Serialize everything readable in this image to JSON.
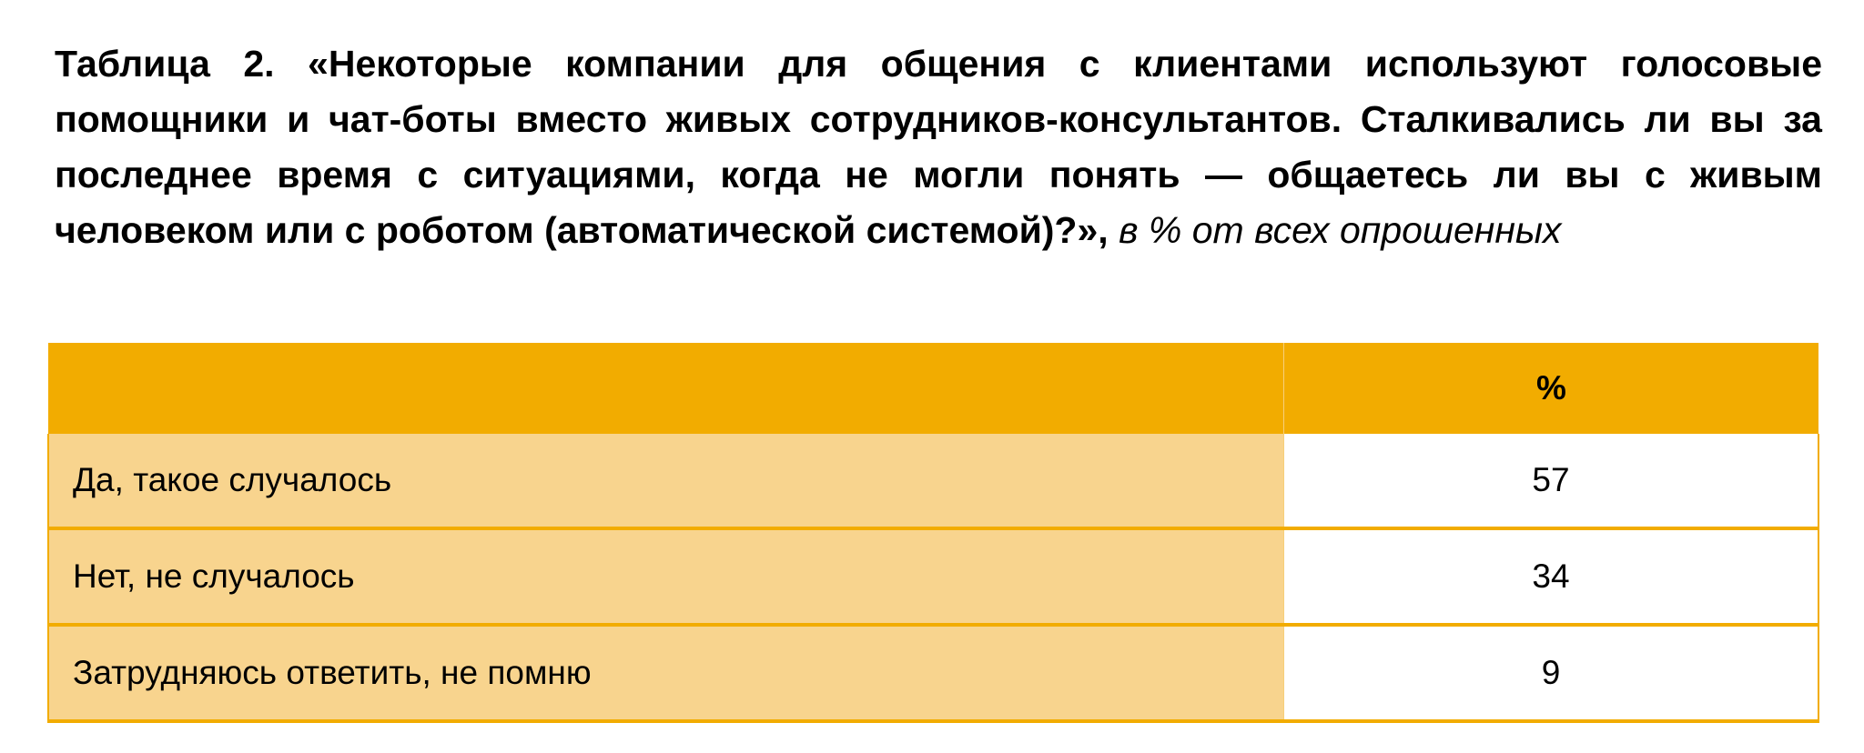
{
  "title": {
    "bold": "Таблица 2. «Некоторые компании для общения с клиентами используют голосовые помощники и чат-боты вместо живых сотрудников-консультантов. Сталкивались ли вы за последнее время с ситуациями, когда не могли понять — общаетесь ли вы с живым человеком или с роботом (автоматической системой)?»,",
    "note": "в % от всех опрошенных"
  },
  "table": {
    "header": [
      "",
      "%"
    ],
    "rows": [
      {
        "label": "Да, такое случалось",
        "value": "57"
      },
      {
        "label": "Нет, не случалось",
        "value": "34"
      },
      {
        "label": "Затрудняюсь ответить, не помню",
        "value": "9"
      }
    ]
  },
  "colors": {
    "header": "#F2AC00",
    "label_cell": "#F8D48E",
    "value_cell": "#FFFFFF"
  }
}
